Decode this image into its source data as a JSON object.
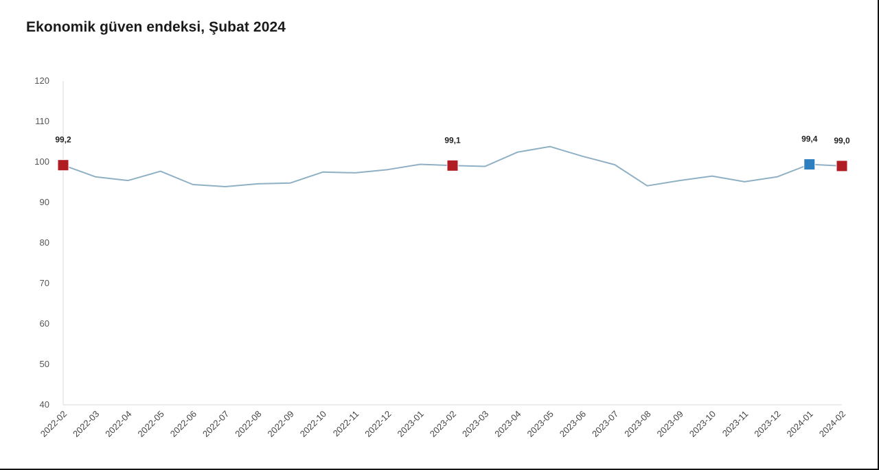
{
  "chart_data": {
    "type": "line",
    "title": "Ekonomik güven endeksi, Şubat 2024",
    "xlabel": "",
    "ylabel": "",
    "ylim": [
      40,
      120
    ],
    "yticks": [
      120,
      110,
      100,
      90,
      80,
      70,
      60,
      50,
      40
    ],
    "categories": [
      "2022-02",
      "2022-03",
      "2022-04",
      "2022-05",
      "2022-06",
      "2022-07",
      "2022-08",
      "2022-09",
      "2022-10",
      "2022-11",
      "2022-12",
      "2023-01",
      "2023-02",
      "2023-03",
      "2023-04",
      "2023-05",
      "2023-06",
      "2023-07",
      "2023-08",
      "2023-09",
      "2023-10",
      "2023-11",
      "2023-12",
      "2024-01",
      "2024-02"
    ],
    "series": [
      {
        "name": "Ekonomik güven endeksi",
        "color": "#8fb0c4",
        "values": [
          99.2,
          96.3,
          95.4,
          97.7,
          94.4,
          93.9,
          94.6,
          94.8,
          97.5,
          97.3,
          98.1,
          99.4,
          99.1,
          98.9,
          102.4,
          103.8,
          101.4,
          99.3,
          94.1,
          95.4,
          96.5,
          95.1,
          96.3,
          99.4,
          99.0
        ]
      }
    ],
    "highlights": [
      {
        "category": "2022-02",
        "value": 99.2,
        "label": "99,2",
        "color": "#b01e23"
      },
      {
        "category": "2023-02",
        "value": 99.1,
        "label": "99,1",
        "color": "#b01e23"
      },
      {
        "category": "2024-01",
        "value": 99.4,
        "label": "99,4",
        "color": "#2e7fbf"
      },
      {
        "category": "2024-02",
        "value": 99.0,
        "label": "99,0",
        "color": "#b01e23"
      }
    ],
    "grid": false
  }
}
